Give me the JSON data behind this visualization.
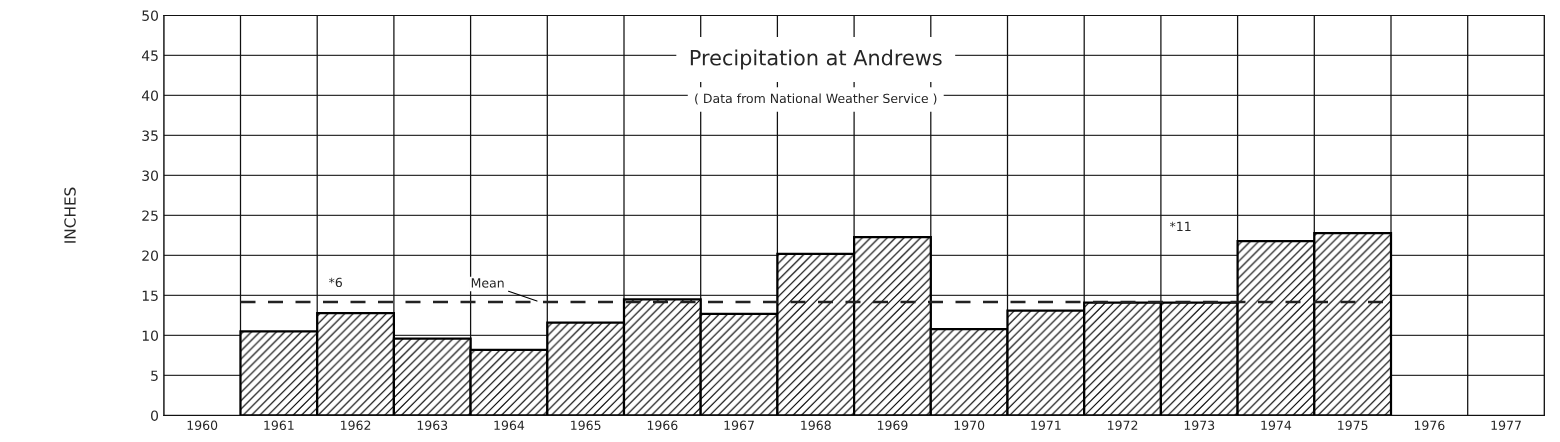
{
  "chart_data": {
    "type": "bar",
    "title": "Precipitation at Andrews",
    "subtitle": "( Data from National Weather Service )",
    "ylabel": "INCHES",
    "categories": [
      "1960",
      "1961",
      "1962",
      "1963",
      "1964",
      "1965",
      "1966",
      "1967",
      "1968",
      "1969",
      "1970",
      "1971",
      "1972",
      "1973",
      "1974",
      "1975",
      "1976",
      "1977"
    ],
    "values": [
      null,
      10.5,
      12.8,
      9.6,
      8.2,
      11.6,
      14.5,
      12.7,
      20.2,
      22.3,
      10.8,
      13.1,
      14.1,
      14.1,
      21.8,
      22.8,
      null,
      null
    ],
    "color": "#000000",
    "ylim": [
      0,
      50
    ],
    "yticks": [
      0,
      5,
      10,
      15,
      20,
      25,
      30,
      35,
      40,
      45,
      50
    ],
    "grid": true,
    "ref_lines": [
      {
        "axis": "y",
        "value": 14.2,
        "label": "Mean",
        "line_style": "dashed",
        "color": "#222222"
      }
    ],
    "annotations": [
      "*6",
      "*11"
    ]
  }
}
